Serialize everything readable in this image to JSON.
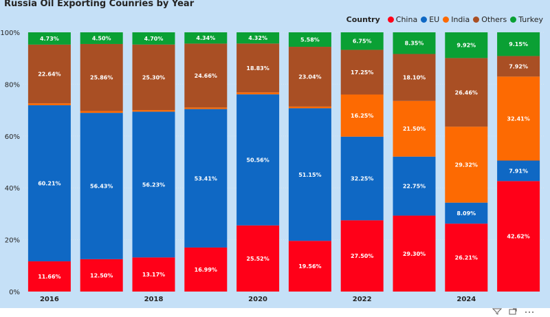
{
  "chart_data": {
    "type": "bar",
    "stacked": true,
    "normalized": true,
    "title": "Russia Oil Exporting Counries by Year",
    "legend_title": "Country",
    "legend_position": "top-right",
    "categories": [
      "2016",
      "2017",
      "2018",
      "2019",
      "2020",
      "2021",
      "2022",
      "2023",
      "2024",
      "2025"
    ],
    "x_tick_labels": [
      "2016",
      "2018",
      "2020",
      "2022",
      "2024"
    ],
    "y_ticks": [
      "0%",
      "20%",
      "40%",
      "60%",
      "80%",
      "100%"
    ],
    "ylim": [
      0,
      100
    ],
    "series": [
      {
        "name": "China",
        "color": "#ff0018",
        "values": [
          11.66,
          12.5,
          13.17,
          16.99,
          25.52,
          19.56,
          27.5,
          29.3,
          26.21,
          42.62
        ],
        "labels": [
          "11.66%",
          "12.50%",
          "13.17%",
          "16.99%",
          "25.52%",
          "19.56%",
          "27.50%",
          "29.30%",
          "26.21%",
          "42.62%"
        ]
      },
      {
        "name": "EU",
        "color": "#0f68c4",
        "values": [
          60.21,
          56.43,
          56.23,
          53.41,
          50.56,
          51.15,
          32.25,
          22.75,
          8.09,
          7.91
        ],
        "labels": [
          "60.21%",
          "56.43%",
          "56.23%",
          "53.41%",
          "50.56%",
          "51.15%",
          "32.25%",
          "22.75%",
          "8.09%",
          "7.91%"
        ]
      },
      {
        "name": "India",
        "color": "#fd6a02",
        "values": [
          0.76,
          0.71,
          0.6,
          0.6,
          0.77,
          0.67,
          16.25,
          21.5,
          29.32,
          32.41
        ],
        "labels": [
          "",
          "",
          "",
          "",
          "",
          "",
          "16.25%",
          "21.50%",
          "29.32%",
          "32.41%"
        ]
      },
      {
        "name": "Others",
        "color": "#a94f24",
        "values": [
          22.64,
          25.86,
          25.3,
          24.66,
          18.83,
          23.04,
          17.25,
          18.1,
          26.46,
          7.92
        ],
        "labels": [
          "22.64%",
          "25.86%",
          "25.30%",
          "24.66%",
          "18.83%",
          "23.04%",
          "17.25%",
          "18.10%",
          "26.46%",
          "7.92%"
        ]
      },
      {
        "name": "Turkey",
        "color": "#0aa034",
        "values": [
          4.73,
          4.5,
          4.7,
          4.34,
          4.32,
          5.58,
          6.75,
          8.35,
          9.92,
          9.15
        ],
        "labels": [
          "4.73%",
          "4.50%",
          "4.70%",
          "4.34%",
          "4.32%",
          "5.58%",
          "6.75%",
          "8.35%",
          "9.92%",
          "9.15%"
        ]
      }
    ],
    "grid": true
  },
  "footer": {
    "filter_icon": "filter-icon",
    "expand_icon": "focus-mode-icon",
    "more_icon": "more-options-icon"
  }
}
